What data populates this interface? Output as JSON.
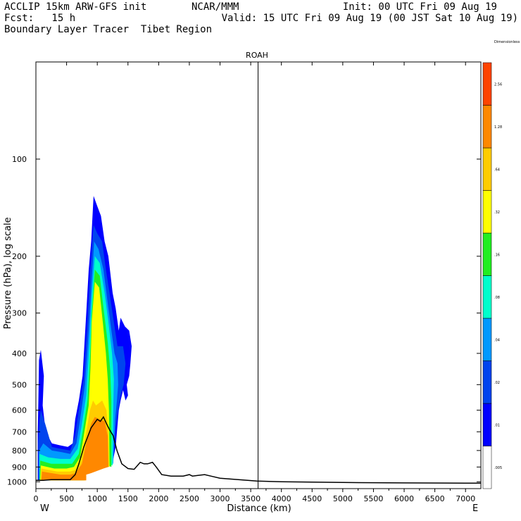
{
  "header": {
    "line1_left": "ACCLIP 15km ARW-GFS init",
    "line1_mid": "NCAR/MMM",
    "line1_right": "Init: 00 UTC Fri 09 Aug 19",
    "line2_left": "Fcst:   15 h",
    "line2_right": "Valid: 15 UTC Fri 09 Aug 19 (00 JST Sat 10 Aug 19)",
    "line3_left": "Boundary Layer Tracer  Tibet Region"
  },
  "chart_data": {
    "type": "heatmap",
    "title": "ROAH",
    "xlabel": "Distance (km)",
    "ylabel": "Pressure (hPa), log scale",
    "xlim": [
      0,
      7250
    ],
    "ylim": [
      1050,
      50
    ],
    "y_scale": "log",
    "x_ticks": [
      0,
      500,
      1000,
      1500,
      2000,
      2500,
      3000,
      3500,
      4000,
      4500,
      5000,
      5500,
      6000,
      6500,
      7000
    ],
    "y_ticks": [
      100,
      200,
      300,
      400,
      500,
      600,
      700,
      800,
      900,
      1000
    ],
    "x_end_labels": {
      "left": "W",
      "right": "E"
    },
    "marker_line_km": 3620,
    "colorbar": {
      "levels": [
        ".005",
        ".01",
        ".02",
        ".04",
        ".08",
        ".16",
        ".32",
        ".64",
        "1.28",
        "2.56",
        "Dimensionless"
      ],
      "colors": [
        "#ffffff",
        "#0000ff",
        "#0044ee",
        "#0099ff",
        "#00ffcc",
        "#22ee22",
        "#ffff00",
        "#ffcc00",
        "#ff8800",
        "#ff4400"
      ]
    },
    "terrain": {
      "x": [
        0,
        120,
        250,
        400,
        560,
        640,
        700,
        740,
        780,
        850,
        900,
        950,
        1000,
        1050,
        1100,
        1150,
        1200,
        1260,
        1320,
        1400,
        1500,
        1600,
        1700,
        1760,
        1820,
        1900,
        1960,
        2050,
        2200,
        2400,
        2500,
        2550,
        2650,
        2750,
        2850,
        3000,
        3300,
        3600,
        4000,
        5000,
        6000,
        7000,
        7250
      ],
      "p": [
        990,
        990,
        985,
        985,
        985,
        950,
        880,
        830,
        780,
        720,
        680,
        660,
        640,
        650,
        630,
        660,
        690,
        720,
        800,
        880,
        910,
        915,
        870,
        880,
        880,
        870,
        900,
        950,
        960,
        960,
        950,
        960,
        955,
        950,
        960,
        975,
        985,
        995,
        1000,
        1005,
        1008,
        1010,
        1010
      ]
    },
    "tracer_layers": [
      {
        "level": ".01",
        "color": "#0000ff",
        "pts": [
          [
            30,
            990
          ],
          [
            30,
            700
          ],
          [
            40,
            560
          ],
          [
            50,
            420
          ],
          [
            80,
            390
          ],
          [
            130,
            470
          ],
          [
            110,
            580
          ],
          [
            160,
            700
          ],
          [
            260,
            760
          ],
          [
            380,
            770
          ],
          [
            520,
            780
          ],
          [
            600,
            760
          ],
          [
            640,
            640
          ],
          [
            700,
            560
          ],
          [
            760,
            470
          ],
          [
            820,
            300
          ],
          [
            860,
            220
          ],
          [
            900,
            180
          ],
          [
            940,
            130
          ],
          [
            1000,
            140
          ],
          [
            1060,
            150
          ],
          [
            1120,
            180
          ],
          [
            1180,
            200
          ],
          [
            1250,
            260
          ],
          [
            1300,
            290
          ],
          [
            1350,
            340
          ],
          [
            1380,
            310
          ],
          [
            1450,
            330
          ],
          [
            1520,
            340
          ],
          [
            1560,
            380
          ],
          [
            1540,
            430
          ],
          [
            1520,
            470
          ],
          [
            1480,
            500
          ],
          [
            1500,
            540
          ],
          [
            1460,
            560
          ],
          [
            1420,
            520
          ],
          [
            1380,
            560
          ],
          [
            1350,
            600
          ],
          [
            1320,
            700
          ],
          [
            1300,
            780
          ],
          [
            1250,
            870
          ],
          [
            1100,
            820
          ],
          [
            900,
            850
          ],
          [
            780,
            860
          ],
          [
            740,
            990
          ]
        ]
      },
      {
        "level": ".02",
        "color": "#0044ee",
        "pts": [
          [
            40,
            990
          ],
          [
            40,
            760
          ],
          [
            60,
            640
          ],
          [
            80,
            600
          ],
          [
            150,
            660
          ],
          [
            260,
            780
          ],
          [
            400,
            790
          ],
          [
            560,
            800
          ],
          [
            640,
            720
          ],
          [
            700,
            600
          ],
          [
            780,
            480
          ],
          [
            840,
            320
          ],
          [
            880,
            230
          ],
          [
            940,
            160
          ],
          [
            1000,
            170
          ],
          [
            1080,
            180
          ],
          [
            1140,
            220
          ],
          [
            1200,
            260
          ],
          [
            1260,
            310
          ],
          [
            1330,
            380
          ],
          [
            1420,
            380
          ],
          [
            1460,
            430
          ],
          [
            1430,
            500
          ],
          [
            1380,
            540
          ],
          [
            1340,
            600
          ],
          [
            1300,
            680
          ],
          [
            1260,
            860
          ],
          [
            1100,
            840
          ],
          [
            900,
            870
          ],
          [
            780,
            880
          ],
          [
            760,
            990
          ]
        ]
      },
      {
        "level": ".04",
        "color": "#0099ff",
        "pts": [
          [
            50,
            990
          ],
          [
            50,
            800
          ],
          [
            120,
            760
          ],
          [
            260,
            800
          ],
          [
            420,
            810
          ],
          [
            560,
            820
          ],
          [
            660,
            760
          ],
          [
            720,
            640
          ],
          [
            800,
            500
          ],
          [
            860,
            340
          ],
          [
            900,
            250
          ],
          [
            950,
            180
          ],
          [
            1020,
            190
          ],
          [
            1100,
            220
          ],
          [
            1160,
            270
          ],
          [
            1220,
            330
          ],
          [
            1280,
            400
          ],
          [
            1330,
            430
          ],
          [
            1340,
            500
          ],
          [
            1320,
            560
          ],
          [
            1290,
            640
          ],
          [
            1260,
            880
          ],
          [
            1100,
            860
          ],
          [
            900,
            890
          ],
          [
            780,
            900
          ],
          [
            770,
            990
          ]
        ]
      },
      {
        "level": ".08",
        "color": "#00ffcc",
        "pts": [
          [
            60,
            990
          ],
          [
            60,
            820
          ],
          [
            200,
            840
          ],
          [
            400,
            850
          ],
          [
            560,
            850
          ],
          [
            680,
            790
          ],
          [
            740,
            680
          ],
          [
            820,
            540
          ],
          [
            870,
            380
          ],
          [
            910,
            270
          ],
          [
            960,
            200
          ],
          [
            1040,
            210
          ],
          [
            1120,
            260
          ],
          [
            1180,
            320
          ],
          [
            1240,
            400
          ],
          [
            1270,
            480
          ],
          [
            1260,
            600
          ],
          [
            1250,
            890
          ],
          [
            1100,
            870
          ],
          [
            900,
            900
          ],
          [
            780,
            910
          ],
          [
            780,
            990
          ]
        ]
      },
      {
        "level": ".16",
        "color": "#22ee22",
        "pts": [
          [
            60,
            990
          ],
          [
            70,
            860
          ],
          [
            250,
            880
          ],
          [
            450,
            880
          ],
          [
            590,
            880
          ],
          [
            700,
            820
          ],
          [
            760,
            700
          ],
          [
            840,
            560
          ],
          [
            880,
            420
          ],
          [
            910,
            300
          ],
          [
            960,
            220
          ],
          [
            1040,
            230
          ],
          [
            1110,
            300
          ],
          [
            1170,
            370
          ],
          [
            1210,
            450
          ],
          [
            1230,
            560
          ],
          [
            1230,
            900
          ],
          [
            1100,
            880
          ],
          [
            900,
            910
          ],
          [
            790,
            920
          ],
          [
            790,
            990
          ]
        ]
      },
      {
        "level": ".32",
        "color": "#ffff00",
        "pts": [
          [
            70,
            990
          ],
          [
            80,
            890
          ],
          [
            300,
            910
          ],
          [
            500,
            910
          ],
          [
            620,
            900
          ],
          [
            720,
            840
          ],
          [
            780,
            720
          ],
          [
            860,
            580
          ],
          [
            890,
            440
          ],
          [
            910,
            320
          ],
          [
            960,
            240
          ],
          [
            1030,
            250
          ],
          [
            1090,
            320
          ],
          [
            1140,
            400
          ],
          [
            1170,
            480
          ],
          [
            1190,
            600
          ],
          [
            1200,
            900
          ],
          [
            1100,
            890
          ],
          [
            900,
            920
          ],
          [
            800,
            930
          ],
          [
            800,
            990
          ]
        ]
      },
      {
        "level": ".64",
        "color": "#ffcc00",
        "pts": [
          [
            80,
            990
          ],
          [
            90,
            910
          ],
          [
            350,
            930
          ],
          [
            550,
            930
          ],
          [
            640,
            920
          ],
          [
            740,
            860
          ],
          [
            800,
            740
          ],
          [
            880,
            600
          ],
          [
            930,
            560
          ],
          [
            980,
            580
          ],
          [
            1080,
            560
          ],
          [
            1150,
            600
          ],
          [
            1180,
            700
          ],
          [
            1190,
            900
          ],
          [
            1100,
            900
          ],
          [
            900,
            930
          ],
          [
            810,
            940
          ],
          [
            810,
            990
          ]
        ]
      },
      {
        "level": "1.28",
        "color": "#ff8800",
        "pts": [
          [
            90,
            990
          ],
          [
            100,
            930
          ],
          [
            400,
            950
          ],
          [
            560,
            950
          ],
          [
            650,
            940
          ],
          [
            750,
            880
          ],
          [
            820,
            760
          ],
          [
            900,
            660
          ],
          [
            960,
            630
          ],
          [
            1040,
            640
          ],
          [
            1120,
            650
          ],
          [
            1170,
            720
          ],
          [
            1180,
            900
          ],
          [
            1100,
            910
          ],
          [
            900,
            940
          ],
          [
            820,
            950
          ],
          [
            820,
            990
          ]
        ]
      }
    ]
  }
}
